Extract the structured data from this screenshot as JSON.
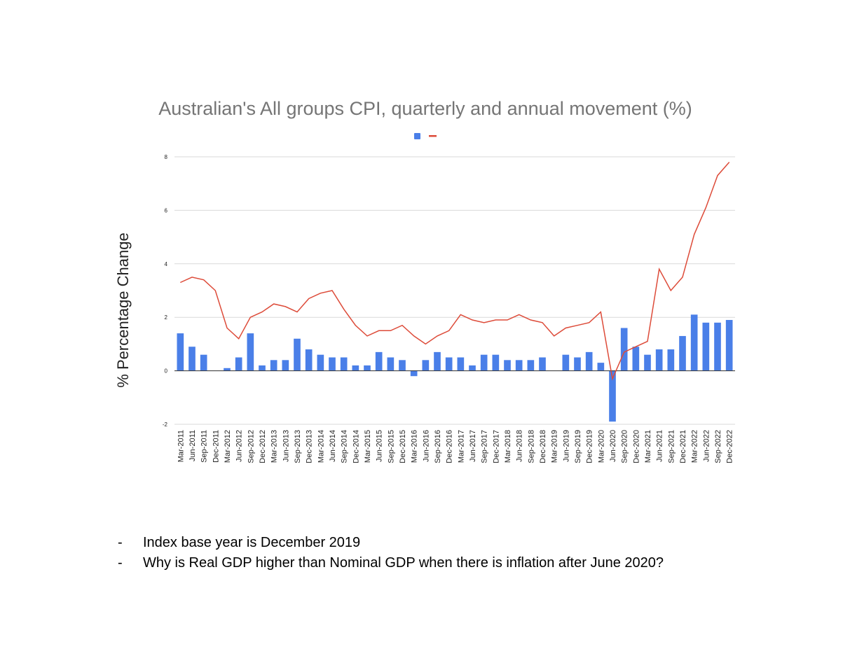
{
  "chart_data": {
    "type": "bar",
    "title": "Australian's All groups CPI, quarterly and annual movement (%)",
    "xlabel": "",
    "ylabel": "% Percentage Change",
    "ylim": [
      -2,
      8
    ],
    "yticks": [
      -2,
      0,
      2,
      4,
      6,
      8
    ],
    "grid": true,
    "legend": "top",
    "categories": [
      "Mar-2011",
      "Jun-2011",
      "Sep-2011",
      "Dec-2011",
      "Mar-2012",
      "Jun-2012",
      "Sep-2012",
      "Dec-2012",
      "Mar-2013",
      "Jun-2013",
      "Sep-2013",
      "Dec-2013",
      "Mar-2014",
      "Jun-2014",
      "Sep-2014",
      "Dec-2014",
      "Mar-2015",
      "Jun-2015",
      "Sep-2015",
      "Dec-2015",
      "Mar-2016",
      "Jun-2016",
      "Sep-2016",
      "Dec-2016",
      "Mar-2017",
      "Jun-2017",
      "Sep-2017",
      "Dec-2017",
      "Mar-2018",
      "Jun-2018",
      "Sep-2018",
      "Dec-2018",
      "Mar-2019",
      "Jun-2019",
      "Sep-2019",
      "Dec-2019",
      "Mar-2020",
      "Jun-2020",
      "Sep-2020",
      "Dec-2020",
      "Mar-2021",
      "Jun-2021",
      "Sep-2021",
      "Dec-2021",
      "Mar-2022",
      "Jun-2022",
      "Sep-2022",
      "Dec-2022"
    ],
    "series": [
      {
        "type": "bar",
        "color": "#4a7fe8",
        "values": [
          1.4,
          0.9,
          0.6,
          0.0,
          0.1,
          0.5,
          1.4,
          0.2,
          0.4,
          0.4,
          1.2,
          0.8,
          0.6,
          0.5,
          0.5,
          0.2,
          0.2,
          0.7,
          0.5,
          0.4,
          -0.2,
          0.4,
          0.7,
          0.5,
          0.5,
          0.2,
          0.6,
          0.6,
          0.4,
          0.4,
          0.4,
          0.5,
          0.0,
          0.6,
          0.5,
          0.7,
          0.3,
          -1.9,
          1.6,
          0.9,
          0.6,
          0.8,
          0.8,
          1.3,
          2.1,
          1.8,
          1.8,
          1.9
        ]
      },
      {
        "type": "line",
        "color": "#dd4b39",
        "values": [
          3.3,
          3.5,
          3.4,
          3.0,
          1.6,
          1.2,
          2.0,
          2.2,
          2.5,
          2.4,
          2.2,
          2.7,
          2.9,
          3.0,
          2.3,
          1.7,
          1.3,
          1.5,
          1.5,
          1.7,
          1.3,
          1.0,
          1.3,
          1.5,
          2.1,
          1.9,
          1.8,
          1.9,
          1.9,
          2.1,
          1.9,
          1.8,
          1.3,
          1.6,
          1.7,
          1.8,
          2.2,
          -0.3,
          0.7,
          0.9,
          1.1,
          3.8,
          3.0,
          3.5,
          5.1,
          6.1,
          7.3,
          7.8
        ]
      }
    ]
  },
  "notes": [
    {
      "marker": "-",
      "text": "Index base year is December 2019"
    },
    {
      "marker": "-",
      "text": "Why is Real GDP higher than Nominal GDP when there is inflation after June 2020?"
    }
  ]
}
